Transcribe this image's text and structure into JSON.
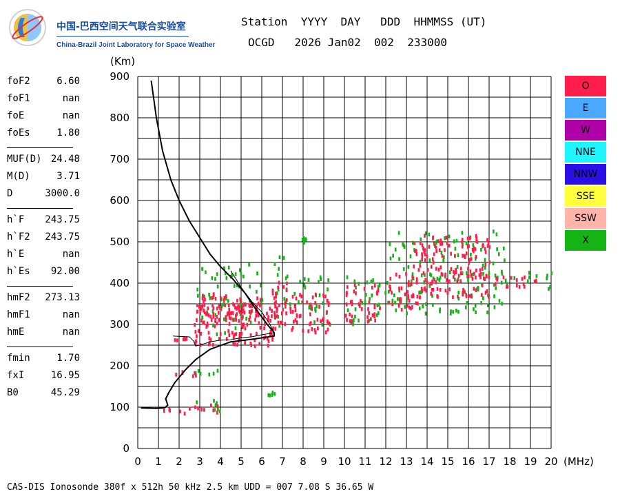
{
  "logo": {
    "cn_text": "中国-巴西空间天气联合实验室",
    "en_text": "China-Brazil Joint Laboratory for Space Weather"
  },
  "header": {
    "line1": "Station  YYYY  DAY   DDD  HHMMSS (UT)",
    "line2": "OCGD   2026 Jan02  002  233000"
  },
  "params": [
    {
      "name": "foF2",
      "value": "6.60"
    },
    {
      "name": "foF1",
      "value": "nan"
    },
    {
      "name": "foE",
      "value": "nan"
    },
    {
      "name": "foEs",
      "value": "1.80"
    },
    {
      "sep": true
    },
    {
      "name": "MUF(D)",
      "value": "24.48"
    },
    {
      "name": "M(D)",
      "value": "3.71"
    },
    {
      "name": "D",
      "value": "3000.0"
    },
    {
      "sep": true
    },
    {
      "name": "h`F",
      "value": "243.75"
    },
    {
      "name": "h`F2",
      "value": "243.75"
    },
    {
      "name": "h`E",
      "value": "nan"
    },
    {
      "name": "h`Es",
      "value": "92.00"
    },
    {
      "sep": true
    },
    {
      "name": "hmF2",
      "value": "273.13"
    },
    {
      "name": "hmF1",
      "value": "nan"
    },
    {
      "name": "hmE",
      "value": "nan"
    },
    {
      "sep": true
    },
    {
      "name": "fmin",
      "value": "1.70"
    },
    {
      "name": "fxI",
      "value": "16.95"
    },
    {
      "name": "B0",
      "value": "45.29"
    }
  ],
  "legend": [
    {
      "label": "O",
      "color": "#ff1e4b"
    },
    {
      "label": "E",
      "color": "#4aa8ff"
    },
    {
      "label": "W",
      "color": "#b000a8"
    },
    {
      "label": "NNE",
      "color": "#1ef5ff"
    },
    {
      "label": "NNW",
      "color": "#2a10e6"
    },
    {
      "label": "SSE",
      "color": "#ffff3c"
    },
    {
      "label": "SSW",
      "color": "#ffb4aa"
    },
    {
      "label": "X",
      "color": "#14b414"
    }
  ],
  "footer": "CAS-DIS Ionosonde 380f x 512h 50 kHz 2.5 km UDD = 007 7.08 S 36.65 W",
  "chart_data": {
    "type": "scatter",
    "xlabel": "(MHz)",
    "ylabel": "(Km)",
    "xlim": [
      0,
      20
    ],
    "ylim": [
      0,
      900
    ],
    "xticks": [
      0,
      1,
      2,
      3,
      4,
      5,
      6,
      7,
      8,
      9,
      10,
      11,
      12,
      13,
      14,
      15,
      16,
      17,
      18,
      19,
      20
    ],
    "yticks": [
      0,
      100,
      200,
      300,
      400,
      500,
      600,
      700,
      800,
      900
    ],
    "grid": true,
    "series": [
      {
        "name": "O",
        "color": "#ff1e4b",
        "regions": [
          {
            "x": [
              1.1,
              2.6
            ],
            "y": [
              88,
              102
            ]
          },
          {
            "x": [
              2.6,
              3.9
            ],
            "y": [
              90,
              112
            ]
          },
          {
            "x": [
              1.2,
              2.9
            ],
            "y": [
              178,
              190
            ]
          },
          {
            "x": [
              1.7,
              2.4
            ],
            "y": [
              265,
              278
            ]
          },
          {
            "x": [
              2.7,
              6.7
            ],
            "y": [
              252,
              360
            ]
          },
          {
            "x": [
              3.0,
              6.0
            ],
            "y": [
              300,
              380
            ]
          },
          {
            "x": [
              6.2,
              7.2
            ],
            "y": [
              300,
              410
            ]
          },
          {
            "x": [
              7.3,
              9.3
            ],
            "y": [
              285,
              380
            ]
          },
          {
            "x": [
              10.0,
              11.7
            ],
            "y": [
              310,
              400
            ]
          },
          {
            "x": [
              12.0,
              13.5
            ],
            "y": [
              340,
              430
            ]
          },
          {
            "x": [
              13.2,
              17.0
            ],
            "y": [
              370,
              520
            ]
          },
          {
            "x": [
              17.0,
              19.3
            ],
            "y": [
              395,
              420
            ]
          }
        ]
      },
      {
        "name": "X",
        "color": "#14b414",
        "regions": [
          {
            "x": [
              2.5,
              4.3
            ],
            "y": [
              88,
              120
            ]
          },
          {
            "x": [
              2.6,
              4.0
            ],
            "y": [
              180,
              195
            ]
          },
          {
            "x": [
              2.8,
              6.0
            ],
            "y": [
              280,
              450
            ]
          },
          {
            "x": [
              6.5,
              7.4
            ],
            "y": [
              300,
              470
            ]
          },
          {
            "x": [
              7.5,
              9.3
            ],
            "y": [
              300,
              420
            ]
          },
          {
            "x": [
              10.0,
              12.0
            ],
            "y": [
              300,
              420
            ]
          },
          {
            "x": [
              12.0,
              17.8
            ],
            "y": [
              330,
              530
            ]
          },
          {
            "x": [
              17.8,
              20.0
            ],
            "y": [
              390,
              430
            ]
          },
          {
            "x": [
              6.2,
              6.6
            ],
            "y": [
              130,
              140
            ]
          },
          {
            "x": [
              7.9,
              8.1
            ],
            "y": [
              500,
              515
            ]
          }
        ]
      }
    ],
    "profile": [
      [
        0.65,
        890
      ],
      [
        0.9,
        800
      ],
      [
        1.2,
        720
      ],
      [
        1.6,
        650
      ],
      [
        2.0,
        600
      ],
      [
        2.5,
        550
      ],
      [
        3.0,
        510
      ],
      [
        3.5,
        470
      ],
      [
        4.0,
        440
      ],
      [
        4.6,
        410
      ],
      [
        5.2,
        375
      ],
      [
        5.6,
        345
      ],
      [
        6.0,
        318
      ],
      [
        6.3,
        298
      ],
      [
        6.6,
        280
      ],
      [
        6.6,
        272
      ],
      [
        5.5,
        264
      ],
      [
        4.5,
        258
      ],
      [
        3.5,
        240
      ],
      [
        2.8,
        215
      ],
      [
        2.3,
        190
      ],
      [
        1.8,
        160
      ],
      [
        1.5,
        135
      ],
      [
        1.35,
        120
      ],
      [
        1.45,
        105
      ],
      [
        1.3,
        98
      ],
      [
        0.9,
        97
      ],
      [
        0.15,
        98
      ]
    ],
    "trace": [
      [
        1.7,
        272
      ],
      [
        2.5,
        270
      ],
      [
        2.7,
        260
      ],
      [
        2.8,
        248
      ],
      [
        3.0,
        250
      ],
      [
        3.5,
        258
      ],
      [
        4.0,
        262
      ],
      [
        4.5,
        263
      ],
      [
        5.0,
        268
      ],
      [
        5.5,
        270
      ],
      [
        6.0,
        275
      ],
      [
        6.6,
        280
      ],
      [
        6.4,
        300
      ],
      [
        6.0,
        330
      ],
      [
        5.6,
        350
      ],
      [
        5.0,
        390
      ],
      [
        4.5,
        430
      ]
    ]
  }
}
